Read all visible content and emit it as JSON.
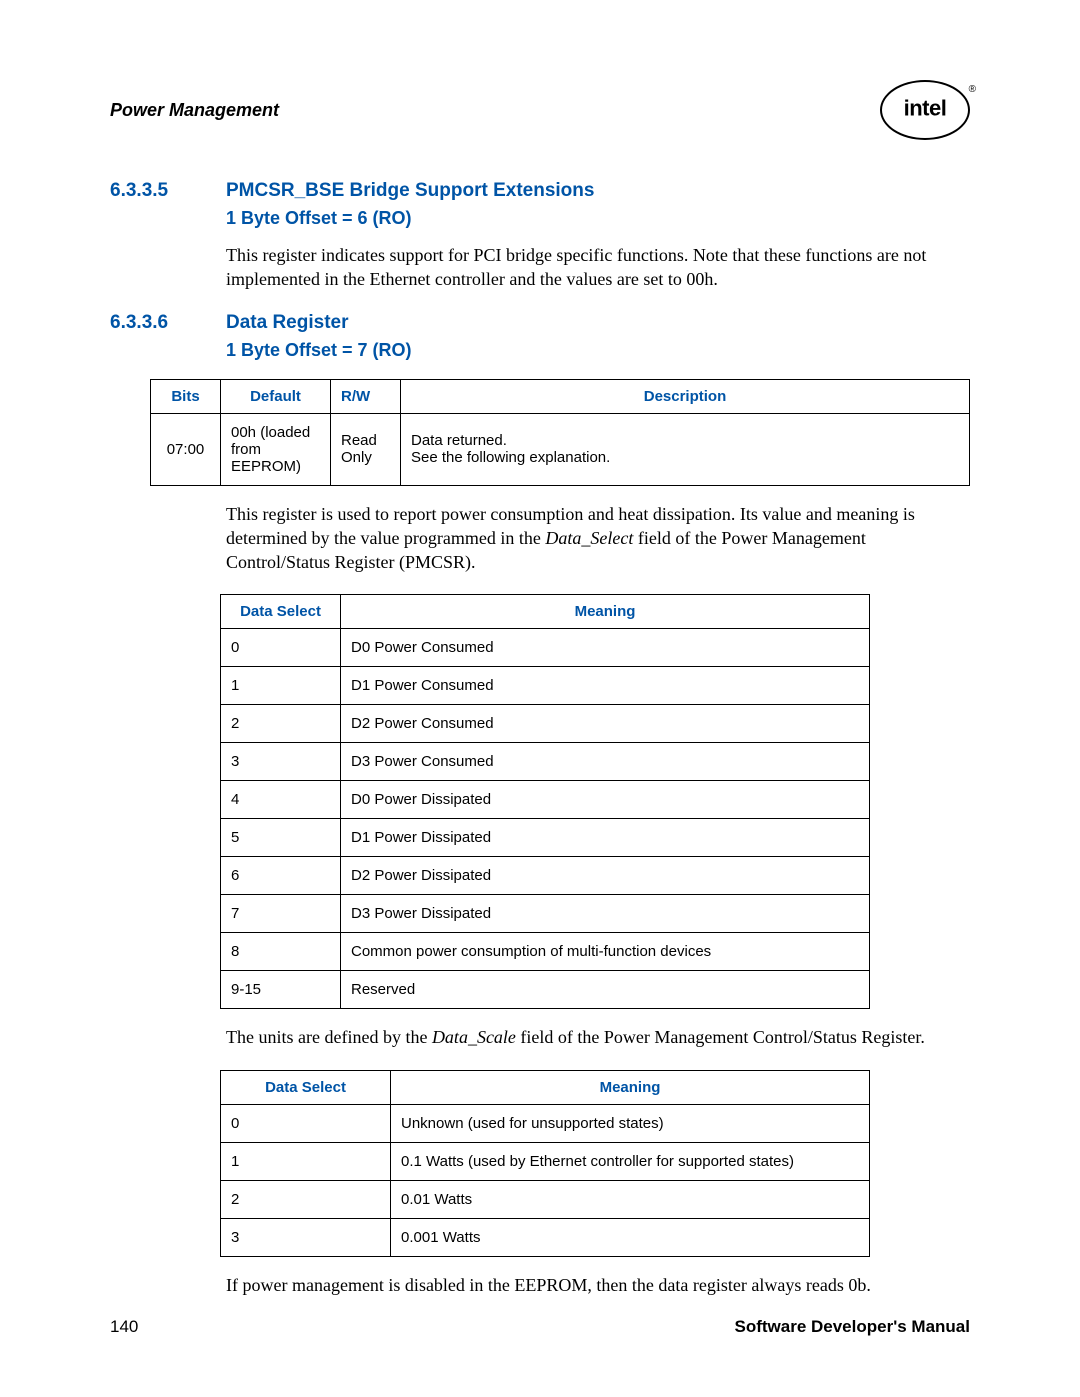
{
  "header": {
    "title": "Power Management",
    "logo_text": "intel",
    "logo_reg": "®"
  },
  "section1": {
    "number": "6.3.3.5",
    "title": "PMCSR_BSE Bridge Support Extensions",
    "subtitle": "1 Byte Offset = 6 (RO)",
    "body": "This register indicates support for PCI bridge specific functions. Note that these functions are not implemented in the Ethernet controller and the values are set to 00h."
  },
  "section2": {
    "number": "6.3.3.6",
    "title": "Data Register",
    "subtitle": "1 Byte Offset = 7 (RO)"
  },
  "table1": {
    "headers": [
      "Bits",
      "Default",
      "R/W",
      "Description"
    ],
    "rows": [
      {
        "bits": "07:00",
        "default": "00h (loaded from EEPROM)",
        "rw": "Read Only",
        "desc_l1": "Data returned.",
        "desc_l2": "See the following explanation."
      }
    ]
  },
  "para1_a": "This register is used to report power consumption and heat dissipation. Its value and meaning is determined by the value programmed in the ",
  "para1_i": "Data_Select",
  "para1_b": " field of the Power Management Control/Status Register (PMCSR).",
  "table2": {
    "headers": [
      "Data Select",
      "Meaning"
    ],
    "rows": [
      [
        "0",
        "D0 Power Consumed"
      ],
      [
        "1",
        "D1 Power Consumed"
      ],
      [
        "2",
        "D2 Power Consumed"
      ],
      [
        "3",
        "D3 Power Consumed"
      ],
      [
        "4",
        "D0 Power Dissipated"
      ],
      [
        "5",
        "D1 Power Dissipated"
      ],
      [
        "6",
        "D2 Power Dissipated"
      ],
      [
        "7",
        "D3 Power Dissipated"
      ],
      [
        "8",
        "Common power consumption of multi-function devices"
      ],
      [
        "9-15",
        "Reserved"
      ]
    ]
  },
  "para2_a": "The units are defined by the ",
  "para2_i": "Data_Scale",
  "para2_b": " field of the Power Management Control/Status Register.",
  "table3": {
    "headers": [
      "Data Select",
      "Meaning"
    ],
    "rows": [
      [
        "0",
        "Unknown (used for unsupported states)"
      ],
      [
        "1",
        "0.1 Watts (used by Ethernet controller for supported states)"
      ],
      [
        "2",
        "0.01 Watts"
      ],
      [
        "3",
        "0.001 Watts"
      ]
    ]
  },
  "para3": "If power management is disabled in the EEPROM, then the data register always reads 0b.",
  "footer": {
    "page": "140",
    "doc": "Software Developer's Manual"
  }
}
